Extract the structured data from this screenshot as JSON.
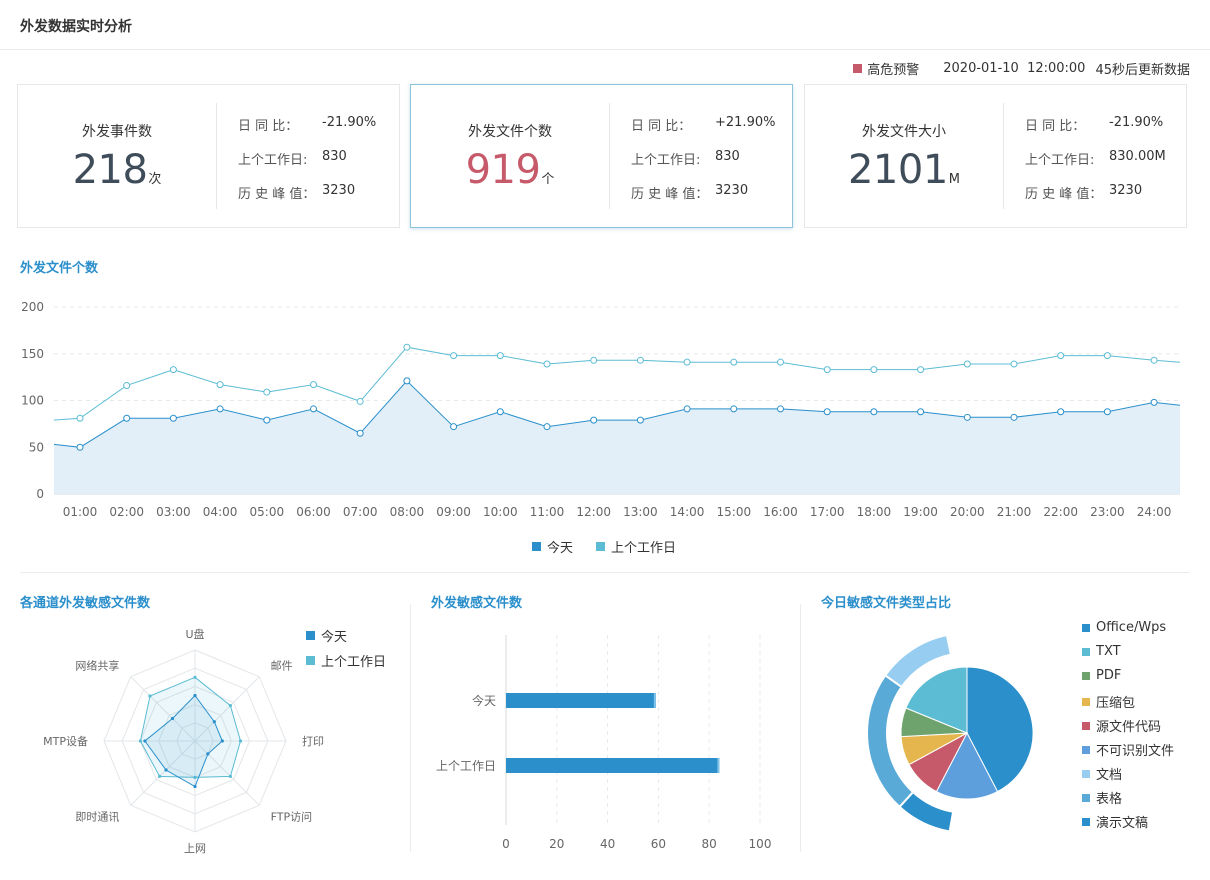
{
  "header": {
    "title": "外发数据实时分析"
  },
  "status": {
    "alert_label": "高危预警",
    "alert_color": "#c75a6a",
    "datetime": "2020-01-10  12:00:00",
    "refresh_text": "45秒后更新数据"
  },
  "cards": [
    {
      "title": "外发事件数",
      "value": "218",
      "unit": "次",
      "alert": false,
      "stats": [
        {
          "label": "日 同 比：",
          "value": "-21.90%"
        },
        {
          "label": "上个工作日:",
          "value": "830"
        },
        {
          "label": "历 史 峰 值：",
          "value": "3230"
        }
      ]
    },
    {
      "title": "外发文件个数",
      "value": "919",
      "unit": "个",
      "alert": true,
      "stats": [
        {
          "label": "日 同 比：",
          "value": "+21.90%"
        },
        {
          "label": "上个工作日:",
          "value": "830"
        },
        {
          "label": "历 史 峰 值：",
          "value": "3230"
        }
      ]
    },
    {
      "title": "外发文件大小",
      "value": "2101",
      "unit": "M",
      "alert": false,
      "stats": [
        {
          "label": "日 同 比：",
          "value": "-21.90%"
        },
        {
          "label": "上个工作日:",
          "value": "830.00M"
        },
        {
          "label": "历 史 峰 值：",
          "value": "3230"
        }
      ]
    }
  ],
  "sections": {
    "line": "外发文件个数",
    "radar": "各通道外发敏感文件数",
    "bar": "外发敏感文件数",
    "pie": "今日敏感文件类型占比"
  },
  "colors": {
    "today": "#2a8fcb",
    "prev": "#5bbcd3",
    "alert": "#c75a6a"
  },
  "chart_data": [
    {
      "type": "line",
      "title": "外发文件个数",
      "x": [
        "01:00",
        "02:00",
        "03:00",
        "04:00",
        "05:00",
        "06:00",
        "07:00",
        "08:00",
        "09:00",
        "10:00",
        "11:00",
        "12:00",
        "13:00",
        "14:00",
        "15:00",
        "16:00",
        "17:00",
        "18:00",
        "19:00",
        "20:00",
        "21:00",
        "22:00",
        "23:00",
        "24:00"
      ],
      "yticks": [
        0,
        50,
        100,
        150,
        200
      ],
      "ylim": [
        0,
        200
      ],
      "series": [
        {
          "name": "今天",
          "color": "#2a8fcb",
          "area": true,
          "start": 53,
          "end": 95,
          "values": [
            50,
            81,
            81,
            91,
            79,
            91,
            65,
            121,
            72,
            88,
            72,
            79,
            79,
            91,
            91,
            91,
            88,
            88,
            88,
            82,
            82,
            88,
            88,
            98
          ]
        },
        {
          "name": "上个工作日",
          "color": "#5bbcd3",
          "area": false,
          "start": 79,
          "end": 141,
          "values": [
            81,
            116,
            133,
            117,
            109,
            117,
            99,
            157,
            148,
            148,
            139,
            143,
            143,
            141,
            141,
            141,
            133,
            133,
            133,
            139,
            139,
            148,
            148,
            143
          ]
        }
      ],
      "grid": true,
      "legend": "bottom-center"
    },
    {
      "type": "radar",
      "title": "各通道外发敏感文件数",
      "axes": [
        "U盘",
        "邮件",
        "打印",
        "FTP访问",
        "上网",
        "即时通讯",
        "MTP设备",
        "网络共享"
      ],
      "max": 100,
      "series": [
        {
          "name": "今天",
          "color": "#2a8fcb",
          "values": [
            50,
            30,
            30,
            20,
            50,
            45,
            55,
            35
          ]
        },
        {
          "name": "上个工作日",
          "color": "#5bbcd3",
          "values": [
            70,
            55,
            50,
            55,
            40,
            55,
            60,
            70
          ]
        }
      ],
      "legend": "top-right"
    },
    {
      "type": "bar",
      "orientation": "horizontal",
      "title": "外发敏感文件数",
      "categories": [
        "今天",
        "上个工作日"
      ],
      "values": [
        59,
        84
      ],
      "xticks": [
        0,
        20,
        40,
        60,
        80,
        100
      ],
      "xlim": [
        0,
        100
      ]
    },
    {
      "type": "pie",
      "title": "今日敏感文件类型占比",
      "inner": [
        {
          "name": "Office/Wps",
          "value": 36,
          "color": "#2a8fcb"
        },
        {
          "name": "TXT",
          "value": 16,
          "color": "#5bbcd3"
        },
        {
          "name": "PDF",
          "value": 6,
          "color": "#6ea36e"
        },
        {
          "name": "压缩包",
          "value": 6,
          "color": "#e5b64e"
        },
        {
          "name": "源文件代码",
          "value": 8,
          "color": "#c75a6a"
        },
        {
          "name": "不可识别文件",
          "value": 13,
          "color": "#5d9fdc"
        }
      ],
      "outer": [
        {
          "name": "文档",
          "value": 12,
          "color": "#96cdf0"
        },
        {
          "name": "表格",
          "value": 23,
          "color": "#5aaad8"
        },
        {
          "name": "演示文稿",
          "value": 9,
          "color": "#2a8fcb"
        }
      ],
      "legend": [
        {
          "name": "Office/Wps",
          "color": "#2a8fcb"
        },
        {
          "name": "TXT",
          "color": "#5bbcd3"
        },
        {
          "name": "PDF",
          "color": "#6ea36e"
        },
        {
          "name": "压缩包",
          "color": "#e5b64e"
        },
        {
          "name": "源文件代码",
          "color": "#c75a6a"
        },
        {
          "name": "不可识别文件",
          "color": "#5d9fdc"
        },
        {
          "name": "文档",
          "color": "#96cdf0"
        },
        {
          "name": "表格",
          "color": "#5aaad8"
        },
        {
          "name": "演示文稿",
          "color": "#2a8fcb"
        }
      ]
    }
  ]
}
